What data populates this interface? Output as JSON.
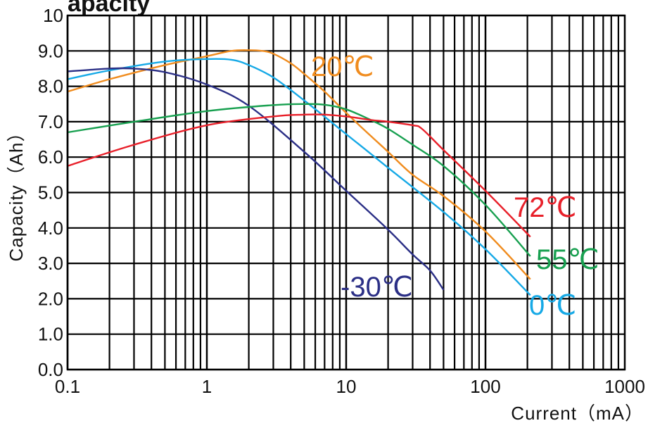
{
  "chart_data": {
    "type": "line",
    "title_fragment": "apacity",
    "xlabel": "Current（mA）",
    "ylabel": "Capacity（Ah）",
    "x_scale": "log",
    "xlim": [
      0.1,
      1000
    ],
    "ylim": [
      0,
      10
    ],
    "x_ticks": [
      0.1,
      1,
      10,
      100,
      1000
    ],
    "x_tick_labels": [
      "0.1",
      "1",
      "10",
      "100",
      "1000"
    ],
    "y_ticks": [
      0,
      1,
      2,
      3,
      4,
      5,
      6,
      7,
      8,
      9,
      10
    ],
    "y_tick_labels": [
      "0.0",
      "1.0",
      "2.0",
      "3.0",
      "4.0",
      "5.0",
      "6.0",
      "7.0",
      "8.0",
      "9.0",
      "10"
    ],
    "grid": true,
    "colors": {
      "20": "#f08c1e",
      "0": "#16a9e6",
      "-30": "#2b2f86",
      "55": "#18a050",
      "72": "#e8202a"
    },
    "series": [
      {
        "name": "20℃",
        "color": "#f08c1e",
        "x": [
          0.1,
          0.2,
          0.5,
          1,
          1.5,
          2,
          2.5,
          3,
          4,
          5,
          7,
          10,
          15,
          20,
          30,
          50,
          100,
          210
        ],
        "y": [
          7.85,
          8.2,
          8.6,
          8.85,
          9.0,
          9.02,
          9.0,
          8.92,
          8.65,
          8.35,
          7.85,
          7.25,
          6.6,
          6.15,
          5.5,
          4.9,
          3.9,
          2.55
        ]
      },
      {
        "name": "0℃",
        "color": "#16a9e6",
        "x": [
          0.1,
          0.2,
          0.5,
          1,
          1.5,
          2,
          3,
          5,
          10,
          20,
          50,
          100,
          210
        ],
        "y": [
          8.2,
          8.45,
          8.7,
          8.77,
          8.75,
          8.6,
          8.25,
          7.6,
          6.65,
          5.7,
          4.45,
          3.4,
          2.1
        ]
      },
      {
        "name": "-30℃",
        "color": "#2b2f86",
        "x": [
          0.1,
          0.2,
          0.3,
          0.5,
          1,
          2,
          5,
          10,
          20,
          30,
          40,
          50
        ],
        "y": [
          8.42,
          8.5,
          8.5,
          8.4,
          8.05,
          7.45,
          6.15,
          5.05,
          3.95,
          3.25,
          2.8,
          2.25
        ]
      },
      {
        "name": "55℃",
        "color": "#18a050",
        "x": [
          0.1,
          0.3,
          1,
          3,
          5,
          7,
          10,
          15,
          20,
          30,
          50,
          100,
          210
        ],
        "y": [
          6.7,
          7.0,
          7.3,
          7.47,
          7.5,
          7.48,
          7.35,
          7.05,
          6.8,
          6.35,
          5.75,
          4.65,
          3.2
        ]
      },
      {
        "name": "72℃",
        "color": "#e8202a",
        "x": [
          0.1,
          0.3,
          1,
          3,
          5,
          7,
          10,
          15,
          20,
          30,
          35,
          50,
          100,
          210
        ],
        "y": [
          5.75,
          6.35,
          6.9,
          7.15,
          7.2,
          7.2,
          7.15,
          7.05,
          7.0,
          6.9,
          6.8,
          6.2,
          5.05,
          3.75
        ]
      }
    ],
    "annotations": [
      {
        "text": "20℃",
        "series": "20℃"
      },
      {
        "text": "0℃",
        "series": "0℃"
      },
      {
        "text": "-30℃",
        "series": "-30℃"
      },
      {
        "text": "55℃",
        "series": "55℃"
      },
      {
        "text": "72℃",
        "series": "72℃"
      }
    ]
  }
}
